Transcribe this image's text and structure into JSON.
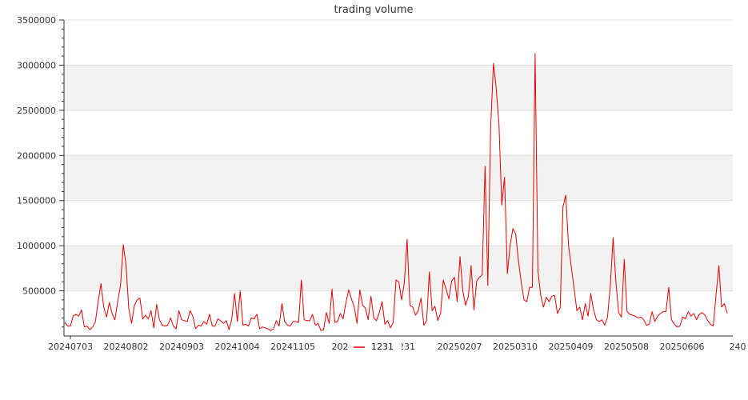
{
  "chart_data": {
    "type": "line",
    "title": "trading volume",
    "xlabel": "",
    "ylabel": "",
    "ylim": [
      0,
      3500000
    ],
    "y_ticks": [
      500000,
      1000000,
      1500000,
      2000000,
      2500000,
      3000000,
      3500000
    ],
    "y_tick_labels": [
      "500000",
      "1000000",
      "1500000",
      "2000000",
      "2500000",
      "3000000",
      "3500000"
    ],
    "x_tick_labels": [
      "20240703",
      "20240802",
      "20240903",
      "20241004",
      "20241105",
      "202412",
      "1231",
      "20250207",
      "20250310",
      "20250409",
      "20250508",
      "20250606",
      "240"
    ],
    "grid": "horizontal bands",
    "legend_position": "bottom-center",
    "colors": {
      "series": "#e60000",
      "band": "#f2f2f2",
      "grid": "#dddddd"
    },
    "series": [
      {
        "name": "1231",
        "values": [
          150000,
          110000,
          110000,
          220000,
          240000,
          220000,
          290000,
          100000,
          110000,
          70000,
          100000,
          160000,
          380000,
          580000,
          320000,
          210000,
          370000,
          250000,
          180000,
          380000,
          560000,
          1010000,
          790000,
          300000,
          140000,
          340000,
          400000,
          420000,
          190000,
          230000,
          190000,
          280000,
          90000,
          350000,
          180000,
          120000,
          110000,
          120000,
          200000,
          110000,
          80000,
          280000,
          180000,
          170000,
          160000,
          280000,
          220000,
          80000,
          120000,
          110000,
          160000,
          130000,
          240000,
          110000,
          110000,
          190000,
          170000,
          140000,
          170000,
          70000,
          190000,
          470000,
          160000,
          500000,
          120000,
          130000,
          110000,
          200000,
          190000,
          240000,
          80000,
          100000,
          90000,
          80000,
          60000,
          80000,
          170000,
          110000,
          360000,
          160000,
          120000,
          110000,
          160000,
          160000,
          150000,
          620000,
          180000,
          170000,
          170000,
          240000,
          120000,
          140000,
          60000,
          70000,
          260000,
          140000,
          520000,
          150000,
          160000,
          250000,
          190000,
          370000,
          510000,
          410000,
          320000,
          140000,
          510000,
          340000,
          310000,
          180000,
          440000,
          200000,
          170000,
          260000,
          380000,
          130000,
          170000,
          90000,
          150000,
          620000,
          600000,
          400000,
          590000,
          1070000,
          340000,
          320000,
          230000,
          280000,
          420000,
          120000,
          170000,
          710000,
          280000,
          330000,
          170000,
          250000,
          620000,
          520000,
          410000,
          610000,
          650000,
          380000,
          880000,
          500000,
          340000,
          440000,
          780000,
          290000,
          610000,
          650000,
          680000,
          1880000,
          560000,
          2300000,
          3020000,
          2750000,
          2350000,
          1450000,
          1760000,
          690000,
          1000000,
          1190000,
          1130000,
          830000,
          590000,
          400000,
          380000,
          540000,
          540000,
          3130000,
          720000,
          450000,
          320000,
          430000,
          380000,
          440000,
          450000,
          250000,
          310000,
          1430000,
          1560000,
          1000000,
          760000,
          520000,
          280000,
          320000,
          180000,
          360000,
          220000,
          470000,
          290000,
          180000,
          160000,
          180000,
          120000,
          210000,
          560000,
          1090000,
          610000,
          260000,
          210000,
          850000,
          270000,
          240000,
          230000,
          220000,
          200000,
          210000,
          180000,
          120000,
          130000,
          270000,
          160000,
          220000,
          250000,
          270000,
          270000,
          540000,
          180000,
          130000,
          100000,
          110000,
          210000,
          190000,
          270000,
          220000,
          250000,
          180000,
          240000,
          260000,
          230000,
          170000,
          130000,
          110000,
          460000,
          780000,
          320000,
          360000,
          250000
        ]
      }
    ]
  }
}
